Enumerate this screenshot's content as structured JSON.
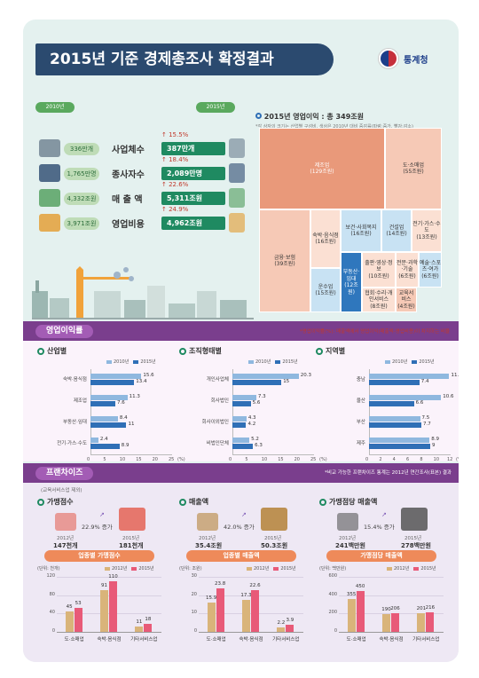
{
  "title": "2015년 기준 경제총조사 확정결과",
  "logo_text": "통계청",
  "summary": {
    "year_old": "2010년",
    "year_new": "2015년",
    "rows": [
      {
        "label": "사업체수",
        "old": "336만개",
        "new": "387만개",
        "pct": "15.5%",
        "icon": "building-icon"
      },
      {
        "label": "종사자수",
        "old": "1,765만명",
        "new": "2,089만명",
        "pct": "18.4%",
        "icon": "worker-icon"
      },
      {
        "label": "매 출 액",
        "old": "4,332조원",
        "new": "5,311조원",
        "pct": "22.6%",
        "icon": "money-icon"
      },
      {
        "label": "영업비용",
        "old": "3,971조원",
        "new": "4,962조원",
        "pct": "24.9%",
        "icon": "coins-icon"
      }
    ]
  },
  "treemap": {
    "title": "2015년 영업이익 : 총 349조원",
    "note": "*각 상자의 크기는 산업별 구성비, 색상은 2010년 대비 증감률(파랑:증가, 빨강:감소)",
    "cells": [
      {
        "name": "제조업",
        "value": "(129조원)"
      },
      {
        "name": "도·소매업",
        "value": "(55조원)"
      },
      {
        "name": "금융·보험",
        "value": "(39조원)"
      },
      {
        "name": "숙박·음식점",
        "value": "(16조원)"
      },
      {
        "name": "보건·사회복지",
        "value": "(16조원)"
      },
      {
        "name": "건설업",
        "value": "(14조원)"
      },
      {
        "name": "전기·가스·수도",
        "value": "(13조원)"
      },
      {
        "name": "운수업",
        "value": "(15조원)"
      },
      {
        "name": "부동산·임대",
        "value": "(12조원)"
      },
      {
        "name": "출판·영상·정보",
        "value": "(10조원)"
      },
      {
        "name": "전문·과학·기술",
        "value": "(6조원)"
      },
      {
        "name": "예술·스포츠·여가",
        "value": "(6조원)"
      },
      {
        "name": "협회·수리·개인서비스",
        "value": "(8조원)"
      },
      {
        "name": "교육서비스",
        "value": "(4조원)"
      }
    ]
  },
  "op_profit": {
    "section_title": "영업이익률",
    "note": "*영업이익률(%): 매출액에서 영업이익(매출액-영업비용)이 차지하는 비율",
    "legend_old": "2010년",
    "legend_new": "2015년"
  },
  "franchise": {
    "section_title": "프랜차이즈",
    "note": "*비교 가능한 프랜차이즈 통계는 2012년 연간조사(표본) 결과",
    "sub_note": "(교육서비스업 제외)",
    "blocks": [
      {
        "title": "가맹점수",
        "y_old": "2012년",
        "v_old": "147천개",
        "y_new": "2015년",
        "v_new": "181천개",
        "pct": "22.9% 증가"
      },
      {
        "title": "매출액",
        "y_old": "2012년",
        "v_old": "35.4조원",
        "y_new": "2015년",
        "v_new": "50.3조원",
        "pct": "42.0% 증가"
      },
      {
        "title": "가맹점당 매출액",
        "y_old": "2012년",
        "v_old": "241백만원",
        "y_new": "2015년",
        "v_new": "278백만원",
        "pct": "15.4% 증가"
      }
    ],
    "legend_old": "2012년",
    "legend_new": "2015년"
  },
  "colors": {
    "old": "#8fb8df",
    "new": "#2f6fb6",
    "f_old": "#d9b47a",
    "f_new": "#e85a78",
    "navy": "#2b4a6f",
    "purple": "#7a3e8d"
  },
  "chart_data": [
    {
      "type": "bar",
      "title": "산업별",
      "orientation": "horizontal",
      "categories": [
        "숙박·음식점",
        "제조업",
        "부동산·임대",
        "전기·가스·수도"
      ],
      "series": [
        {
          "name": "2010년",
          "values": [
            15.6,
            11.3,
            8.4,
            2.4
          ]
        },
        {
          "name": "2015년",
          "values": [
            13.4,
            7.6,
            11.0,
            8.9
          ]
        }
      ],
      "xlim": [
        0,
        25
      ],
      "xticks": [
        0,
        5,
        10,
        15,
        20,
        25
      ],
      "xunit": "(%)"
    },
    {
      "type": "bar",
      "title": "조직형태별",
      "orientation": "horizontal",
      "categories": [
        "개인사업체",
        "회사법인",
        "회사이외법인",
        "비법인단체"
      ],
      "series": [
        {
          "name": "2010년",
          "values": [
            20.3,
            7.3,
            4.3,
            5.2
          ]
        },
        {
          "name": "2015년",
          "values": [
            15.0,
            5.6,
            4.2,
            6.3
          ]
        }
      ],
      "xlim": [
        0,
        25
      ],
      "xticks": [
        0,
        5,
        10,
        15,
        20,
        25
      ],
      "xunit": "(%)"
    },
    {
      "type": "bar",
      "title": "지역별",
      "orientation": "horizontal",
      "categories": [
        "충남",
        "울산",
        "부산",
        "제주"
      ],
      "series": [
        {
          "name": "2010년",
          "values": [
            11.8,
            10.6,
            7.5,
            8.9
          ]
        },
        {
          "name": "2015년",
          "values": [
            7.4,
            6.6,
            7.7,
            9.0
          ]
        }
      ],
      "xlim": [
        0,
        12
      ],
      "xticks": [
        0,
        2,
        4,
        6,
        8,
        10,
        12
      ],
      "xunit": "(%)"
    },
    {
      "type": "bar",
      "title": "업종별 가맹점수",
      "yunit": "(단위: 천개)",
      "categories": [
        "도·소매업",
        "숙박·음식점",
        "기타서비스업"
      ],
      "series": [
        {
          "name": "2012년",
          "values": [
            45,
            91,
            11
          ]
        },
        {
          "name": "2015년",
          "values": [
            53,
            110,
            18
          ]
        }
      ],
      "ylim": [
        0,
        120
      ],
      "yticks": [
        0,
        40,
        80,
        120
      ]
    },
    {
      "type": "bar",
      "title": "업종별 매출액",
      "yunit": "(단위: 조원)",
      "categories": [
        "도·소매업",
        "숙박·음식점",
        "기타서비스업"
      ],
      "series": [
        {
          "name": "2012년",
          "values": [
            15.9,
            17.3,
            2.2
          ]
        },
        {
          "name": "2015년",
          "values": [
            23.8,
            22.6,
            3.9
          ]
        }
      ],
      "ylim": [
        0,
        30
      ],
      "yticks": [
        0,
        10,
        20,
        30
      ]
    },
    {
      "type": "bar",
      "title": "가맹점당 매출액",
      "yunit": "(단위: 백만원)",
      "categories": [
        "도·소매업",
        "숙박·음식점",
        "기타서비스업"
      ],
      "series": [
        {
          "name": "2012년",
          "values": [
            355,
            190,
            201
          ]
        },
        {
          "name": "2015년",
          "values": [
            450,
            206,
            216
          ]
        }
      ],
      "ylim": [
        0,
        600
      ],
      "yticks": [
        0,
        200,
        400,
        600
      ]
    }
  ]
}
